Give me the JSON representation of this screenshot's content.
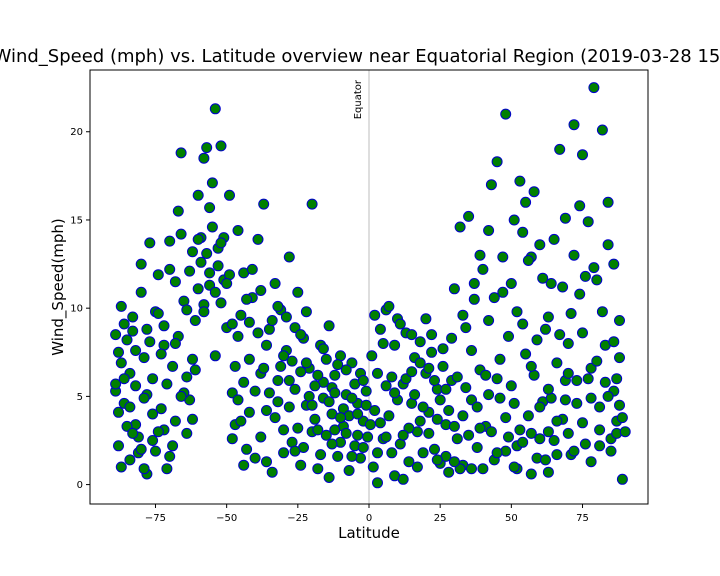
{
  "chart_data": {
    "type": "scatter",
    "title": "Wind_Speed (mph) vs. Latitude overview near Equatorial Region (2019-03-28 15:",
    "xlabel": "Latitude",
    "ylabel": "Wind_Speed(mph)",
    "xlim": [
      -98,
      98
    ],
    "ylim": [
      -1.1,
      23.5
    ],
    "xticks": [
      -75,
      -50,
      -25,
      0,
      25,
      50,
      75
    ],
    "yticks": [
      0,
      5,
      10,
      15,
      20
    ],
    "grid": false,
    "marker_fill": "#008000",
    "marker_edge": "#0000cc",
    "reference_line": {
      "x": 0,
      "label": "Equator",
      "color": "#d3d3d3"
    },
    "points": [
      [
        -89,
        5.3
      ],
      [
        -88,
        7.5
      ],
      [
        -87,
        10.1
      ],
      [
        -86,
        4.6
      ],
      [
        -85,
        8.2
      ],
      [
        -84,
        6.3
      ],
      [
        -83,
        9.5
      ],
      [
        -82,
        3.4
      ],
      [
        -81,
        1.8
      ],
      [
        -80,
        12.5
      ],
      [
        -79,
        7.2
      ],
      [
        -78,
        5.1
      ],
      [
        -77,
        13.7
      ],
      [
        -76,
        2.5
      ],
      [
        -75,
        9.8
      ],
      [
        -74,
        11.9
      ],
      [
        -73,
        4.3
      ],
      [
        -72,
        7.9
      ],
      [
        -71,
        0.9
      ],
      [
        -70,
        12.2
      ],
      [
        -69,
        6.7
      ],
      [
        -68,
        3.6
      ],
      [
        -67,
        15.5
      ],
      [
        -66,
        18.8
      ],
      [
        -65,
        10.4
      ],
      [
        -64,
        6.1
      ],
      [
        -63,
        4.8
      ],
      [
        -62,
        13.2
      ],
      [
        -61,
        9.3
      ],
      [
        -60,
        11.1
      ],
      [
        -59,
        14.0
      ],
      [
        -58,
        18.5
      ],
      [
        -57,
        19.1
      ],
      [
        -56,
        15.7
      ],
      [
        -55,
        17.1
      ],
      [
        -54,
        21.3
      ],
      [
        -53,
        13.4
      ],
      [
        -52,
        19.2
      ],
      [
        -51,
        11.6
      ],
      [
        -50,
        8.9
      ],
      [
        -49,
        16.4
      ],
      [
        -48,
        5.2
      ],
      [
        -47,
        3.4
      ],
      [
        -46,
        14.4
      ],
      [
        -45,
        9.6
      ],
      [
        -44,
        12.0
      ],
      [
        -43,
        2.0
      ],
      [
        -42,
        7.1
      ],
      [
        -41,
        10.6
      ],
      [
        -40,
        1.5
      ],
      [
        -39,
        13.9
      ],
      [
        -38,
        6.3
      ],
      [
        -37,
        15.9
      ],
      [
        -36,
        4.2
      ],
      [
        -35,
        8.8
      ],
      [
        -34,
        0.7
      ],
      [
        -33,
        11.4
      ],
      [
        -32,
        5.9
      ],
      [
        -31,
        9.9
      ],
      [
        -30,
        3.1
      ],
      [
        -29,
        7.6
      ],
      [
        -28,
        12.9
      ],
      [
        -27,
        2.4
      ],
      [
        -26,
        5.4
      ],
      [
        -25,
        10.9
      ],
      [
        -24,
        1.1
      ],
      [
        -23,
        8.3
      ],
      [
        -22,
        4.5
      ],
      [
        -21,
        6.6
      ],
      [
        -20,
        15.9
      ],
      [
        -19,
        3.7
      ],
      [
        -18,
        0.9
      ],
      [
        -17,
        7.9
      ],
      [
        -16,
        5.8
      ],
      [
        -15,
        2.8
      ],
      [
        -14,
        9.0
      ],
      [
        -13,
        4.0
      ],
      [
        -12,
        6.2
      ],
      [
        -11,
        1.6
      ],
      [
        -10,
        7.3
      ],
      [
        -9,
        3.3
      ],
      [
        -8,
        5.1
      ],
      [
        -7,
        0.8
      ],
      [
        -6,
        6.9
      ],
      [
        -5,
        2.2
      ],
      [
        -4,
        4.6
      ],
      [
        -3,
        1.5
      ],
      [
        -2,
        3.6
      ],
      [
        -1,
        5.3
      ],
      [
        -0.5,
        2.7
      ],
      [
        1,
        7.3
      ],
      [
        1.5,
        1.0
      ],
      [
        2,
        4.2
      ],
      [
        3,
        0.1
      ],
      [
        4,
        8.8
      ],
      [
        5,
        2.6
      ],
      [
        6,
        9.9
      ],
      [
        7,
        3.9
      ],
      [
        8,
        6.1
      ],
      [
        9,
        0.5
      ],
      [
        10,
        9.4
      ],
      [
        11,
        2.3
      ],
      [
        12,
        5.7
      ],
      [
        13,
        8.6
      ],
      [
        14,
        1.3
      ],
      [
        15,
        4.6
      ],
      [
        16,
        7.2
      ],
      [
        17,
        3.0
      ],
      [
        18,
        8.1
      ],
      [
        19,
        1.8
      ],
      [
        20,
        6.3
      ],
      [
        21,
        4.1
      ],
      [
        22,
        8.5
      ],
      [
        23,
        2.0
      ],
      [
        24,
        5.4
      ],
      [
        25,
        1.2
      ],
      [
        26,
        7.7
      ],
      [
        27,
        3.4
      ],
      [
        28,
        0.7
      ],
      [
        29,
        5.9
      ],
      [
        30,
        11.1
      ],
      [
        31,
        2.6
      ],
      [
        32,
        14.6
      ],
      [
        33,
        1.1
      ],
      [
        34,
        8.9
      ],
      [
        35,
        15.2
      ],
      [
        36,
        4.8
      ],
      [
        37,
        10.5
      ],
      [
        38,
        2.1
      ],
      [
        39,
        6.5
      ],
      [
        40,
        12.2
      ],
      [
        41,
        3.3
      ],
      [
        42,
        9.3
      ],
      [
        43,
        17.0
      ],
      [
        44,
        1.4
      ],
      [
        45,
        18.3
      ],
      [
        46,
        7.1
      ],
      [
        47,
        10.9
      ],
      [
        48,
        21.0
      ],
      [
        49,
        2.7
      ],
      [
        50,
        5.6
      ],
      [
        51,
        15.0
      ],
      [
        52,
        0.9
      ],
      [
        53,
        17.2
      ],
      [
        54,
        9.1
      ],
      [
        55,
        16.0
      ],
      [
        56,
        3.9
      ],
      [
        57,
        12.9
      ],
      [
        58,
        6.2
      ],
      [
        59,
        1.5
      ],
      [
        60,
        13.6
      ],
      [
        61,
        4.7
      ],
      [
        62,
        8.8
      ],
      [
        63,
        0.7
      ],
      [
        64,
        11.4
      ],
      [
        65,
        2.5
      ],
      [
        66,
        6.9
      ],
      [
        67,
        19.0
      ],
      [
        68,
        3.7
      ],
      [
        69,
        15.1
      ],
      [
        70,
        8.0
      ],
      [
        71,
        1.7
      ],
      [
        72,
        20.4
      ],
      [
        73,
        5.9
      ],
      [
        74,
        10.8
      ],
      [
        75,
        18.7
      ],
      [
        76,
        2.3
      ],
      [
        77,
        14.9
      ],
      [
        78,
        6.6
      ],
      [
        79,
        22.5
      ],
      [
        80,
        11.6
      ],
      [
        81,
        4.4
      ],
      [
        82,
        20.1
      ],
      [
        83,
        7.9
      ],
      [
        84,
        16.0
      ],
      [
        85,
        1.9
      ],
      [
        86,
        12.5
      ],
      [
        87,
        3.6
      ],
      [
        88,
        9.3
      ],
      [
        89,
        0.3
      ],
      [
        -88,
        4.1
      ],
      [
        -87,
        6.9
      ],
      [
        -86,
        9.1
      ],
      [
        -84,
        1.4
      ],
      [
        -83,
        8.7
      ],
      [
        -82,
        5.6
      ],
      [
        -81,
        2.7
      ],
      [
        -80,
        10.9
      ],
      [
        -79,
        4.9
      ],
      [
        -78,
        0.6
      ],
      [
        -77,
        8.1
      ],
      [
        -76,
        6.0
      ],
      [
        -75,
        1.9
      ],
      [
        -74,
        9.7
      ],
      [
        -72,
        3.1
      ],
      [
        -71,
        5.7
      ],
      [
        -70,
        13.8
      ],
      [
        -69,
        2.2
      ],
      [
        -68,
        11.5
      ],
      [
        -67,
        8.4
      ],
      [
        -66,
        14.2
      ],
      [
        -64,
        9.9
      ],
      [
        -63,
        12.1
      ],
      [
        -62,
        3.7
      ],
      [
        -61,
        6.5
      ],
      [
        -60,
        16.4
      ],
      [
        -59,
        12.6
      ],
      [
        -58,
        10.2
      ],
      [
        -57,
        13.1
      ],
      [
        -56,
        11.3
      ],
      [
        -55,
        14.6
      ],
      [
        -54,
        7.3
      ],
      [
        -53,
        12.4
      ],
      [
        -51,
        14.0
      ],
      [
        -49,
        11.9
      ],
      [
        -48,
        9.1
      ],
      [
        -47,
        6.7
      ],
      [
        -46,
        4.8
      ],
      [
        -44,
        1.1
      ],
      [
        -43,
        10.5
      ],
      [
        -42,
        4.1
      ],
      [
        -41,
        12.2
      ],
      [
        -39,
        8.6
      ],
      [
        -38,
        2.7
      ],
      [
        -36,
        7.9
      ],
      [
        -35,
        5.2
      ],
      [
        -33,
        3.8
      ],
      [
        -32,
        10.1
      ],
      [
        -31,
        6.7
      ],
      [
        -30,
        1.8
      ],
      [
        -29,
        9.5
      ],
      [
        -28,
        4.4
      ],
      [
        -26,
        8.9
      ],
      [
        -25,
        3.2
      ],
      [
        -24,
        6.4
      ],
      [
        -23,
        2.1
      ],
      [
        -22,
        9.8
      ],
      [
        -21,
        5.0
      ],
      [
        -20,
        3.0
      ],
      [
        -18,
        6.2
      ],
      [
        -17,
        1.7
      ],
      [
        -16,
        4.9
      ],
      [
        -15,
        7.1
      ],
      [
        -14,
        0.4
      ],
      [
        -13,
        5.5
      ],
      [
        -12,
        3.1
      ],
      [
        -11,
        6.8
      ],
      [
        -10,
        2.4
      ],
      [
        -9,
        4.3
      ],
      [
        -8,
        6.5
      ],
      [
        -7,
        3.9
      ],
      [
        -6,
        1.6
      ],
      [
        -5,
        5.7
      ],
      [
        -4,
        4.0
      ],
      [
        -3,
        6.3
      ],
      [
        -2,
        2.1
      ],
      [
        -1,
        4.5
      ],
      [
        2,
        9.6
      ],
      [
        4,
        3.5
      ],
      [
        6,
        5.6
      ],
      [
        7,
        10.1
      ],
      [
        8,
        1.8
      ],
      [
        9,
        7.9
      ],
      [
        10,
        4.8
      ],
      [
        11,
        9.1
      ],
      [
        12,
        0.3
      ],
      [
        13,
        6.0
      ],
      [
        14,
        3.2
      ],
      [
        15,
        8.5
      ],
      [
        16,
        5.1
      ],
      [
        17,
        1.0
      ],
      [
        18,
        6.9
      ],
      [
        19,
        4.4
      ],
      [
        20,
        9.4
      ],
      [
        21,
        2.9
      ],
      [
        22,
        7.5
      ],
      [
        23,
        5.9
      ],
      [
        24,
        3.7
      ],
      [
        26,
        6.7
      ],
      [
        27,
        1.6
      ],
      [
        28,
        4.2
      ],
      [
        29,
        8.3
      ],
      [
        30,
        3.3
      ],
      [
        31,
        6.1
      ],
      [
        32,
        0.9
      ],
      [
        33,
        9.6
      ],
      [
        34,
        5.5
      ],
      [
        35,
        2.8
      ],
      [
        36,
        7.6
      ],
      [
        37,
        11.4
      ],
      [
        38,
        4.4
      ],
      [
        39,
        13.0
      ],
      [
        40,
        0.9
      ],
      [
        41,
        6.2
      ],
      [
        42,
        14.4
      ],
      [
        43,
        3.0
      ],
      [
        44,
        10.6
      ],
      [
        46,
        4.9
      ],
      [
        47,
        12.9
      ],
      [
        48,
        1.9
      ],
      [
        49,
        8.4
      ],
      [
        50,
        11.4
      ],
      [
        51,
        4.6
      ],
      [
        52,
        9.8
      ],
      [
        53,
        3.1
      ],
      [
        54,
        14.3
      ],
      [
        55,
        7.4
      ],
      [
        56,
        12.7
      ],
      [
        57,
        2.9
      ],
      [
        58,
        16.6
      ],
      [
        59,
        8.2
      ],
      [
        60,
        4.4
      ],
      [
        61,
        11.7
      ],
      [
        62,
        1.4
      ],
      [
        63,
        9.5
      ],
      [
        64,
        4.9
      ],
      [
        65,
        13.9
      ],
      [
        66,
        3.6
      ],
      [
        67,
        8.5
      ],
      [
        68,
        11.2
      ],
      [
        69,
        5.9
      ],
      [
        70,
        2.9
      ],
      [
        71,
        9.7
      ],
      [
        72,
        13.0
      ],
      [
        73,
        4.6
      ],
      [
        74,
        15.8
      ],
      [
        75,
        8.6
      ],
      [
        76,
        11.8
      ],
      [
        77,
        6.0
      ],
      [
        78,
        1.3
      ],
      [
        79,
        12.3
      ],
      [
        80,
        7.0
      ],
      [
        81,
        3.1
      ],
      [
        82,
        9.8
      ],
      [
        83,
        5.8
      ],
      [
        84,
        13.6
      ],
      [
        85,
        2.6
      ],
      [
        86,
        8.1
      ],
      [
        87,
        6.0
      ],
      [
        88,
        4.5
      ],
      [
        -89,
        8.5
      ],
      [
        -85,
        3.3
      ],
      [
        -73,
        7.4
      ],
      [
        -65,
        5.2
      ],
      [
        -52,
        10.3
      ],
      [
        -45,
        3.6
      ],
      [
        -37,
        6.6
      ],
      [
        -27,
        7.0
      ],
      [
        -19,
        5.6
      ],
      [
        -13,
        2.3
      ],
      [
        3,
        6.3
      ],
      [
        5,
        8.0
      ],
      [
        25,
        4.8
      ],
      [
        45,
        6.0
      ],
      [
        52,
        2.2
      ],
      [
        57,
        6.7
      ],
      [
        63,
        3.0
      ],
      [
        70,
        6.3
      ],
      [
        86,
        5.3
      ],
      [
        89,
        3.8
      ],
      [
        -88,
        2.2
      ],
      [
        -86,
        6.0
      ],
      [
        -84,
        4.4
      ],
      [
        -82,
        7.6
      ],
      [
        -80,
        2.0
      ],
      [
        -78,
        8.8
      ],
      [
        -76,
        4.0
      ],
      [
        -74,
        3.0
      ],
      [
        -72,
        9.0
      ],
      [
        -70,
        1.6
      ],
      [
        -68,
        8.0
      ],
      [
        -66,
        5.0
      ],
      [
        -64,
        2.9
      ],
      [
        -62,
        7.1
      ],
      [
        -60,
        13.9
      ],
      [
        -58,
        9.8
      ],
      [
        -56,
        12.0
      ],
      [
        -54,
        10.9
      ],
      [
        -52,
        13.7
      ],
      [
        -50,
        11.4
      ],
      [
        -48,
        2.6
      ],
      [
        -46,
        8.4
      ],
      [
        -44,
        5.8
      ],
      [
        -42,
        9.2
      ],
      [
        -40,
        5.3
      ],
      [
        -38,
        11.0
      ],
      [
        -36,
        1.3
      ],
      [
        -34,
        9.3
      ],
      [
        -32,
        4.7
      ],
      [
        -30,
        7.3
      ],
      [
        -28,
        5.9
      ],
      [
        -26,
        1.9
      ],
      [
        -24,
        8.5
      ],
      [
        -22,
        6.9
      ],
      [
        -20,
        4.5
      ],
      [
        -18,
        3.1
      ],
      [
        -16,
        7.7
      ],
      [
        -14,
        4.7
      ],
      [
        -12,
        5.2
      ],
      [
        -10,
        3.8
      ],
      [
        -8,
        2.9
      ],
      [
        -6,
        4.9
      ],
      [
        -4,
        2.8
      ],
      [
        -2,
        5.9
      ],
      [
        0.5,
        3.4
      ],
      [
        3,
        1.8
      ],
      [
        6,
        2.7
      ],
      [
        9,
        5.2
      ],
      [
        12,
        2.8
      ],
      [
        15,
        6.4
      ],
      [
        18,
        3.6
      ],
      [
        21,
        6.6
      ],
      [
        24,
        1.4
      ],
      [
        27,
        5.4
      ],
      [
        30,
        1.3
      ],
      [
        33,
        3.9
      ],
      [
        36,
        0.9
      ],
      [
        39,
        3.2
      ],
      [
        42,
        5.1
      ],
      [
        45,
        1.8
      ],
      [
        48,
        3.8
      ],
      [
        51,
        1.0
      ],
      [
        54,
        2.4
      ],
      [
        57,
        0.6
      ],
      [
        60,
        2.6
      ],
      [
        63,
        5.4
      ],
      [
        66,
        1.7
      ],
      [
        69,
        4.8
      ],
      [
        72,
        1.9
      ],
      [
        75,
        3.5
      ],
      [
        78,
        4.9
      ],
      [
        81,
        2.2
      ],
      [
        84,
        5.0
      ],
      [
        87,
        2.9
      ],
      [
        88,
        7.2
      ],
      [
        90,
        3.0
      ],
      [
        -89,
        5.7
      ],
      [
        -87,
        1.0
      ],
      [
        -83,
        2.9
      ],
      [
        -79,
        0.9
      ]
    ]
  }
}
